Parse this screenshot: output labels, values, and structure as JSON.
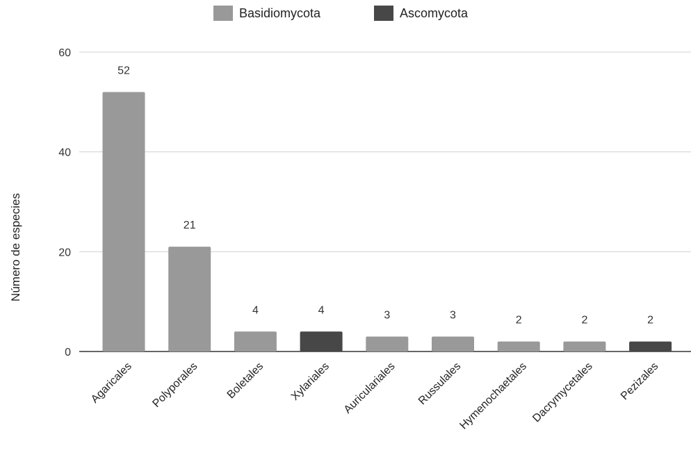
{
  "chart_data": {
    "type": "bar",
    "ylabel": "Número de especies",
    "ylim": [
      0,
      60
    ],
    "yticks": [
      0,
      20,
      40,
      60
    ],
    "grid": true,
    "legend_position": "top-center",
    "series": [
      {
        "name": "Basidiomycota",
        "color": "#999999"
      },
      {
        "name": "Ascomycota",
        "color": "#474747"
      }
    ],
    "categories": [
      "Agaricales",
      "Polyporales",
      "Boletales",
      "Xylariales",
      "Auriculariales",
      "Russulales",
      "Hymenochaetales",
      "Dacrymycetales",
      "Pezizales"
    ],
    "values": [
      52,
      21,
      4,
      4,
      3,
      3,
      2,
      2,
      2
    ],
    "bar_series": [
      "Basidiomycota",
      "Basidiomycota",
      "Basidiomycota",
      "Ascomycota",
      "Basidiomycota",
      "Basidiomycota",
      "Basidiomycota",
      "Basidiomycota",
      "Ascomycota"
    ]
  }
}
